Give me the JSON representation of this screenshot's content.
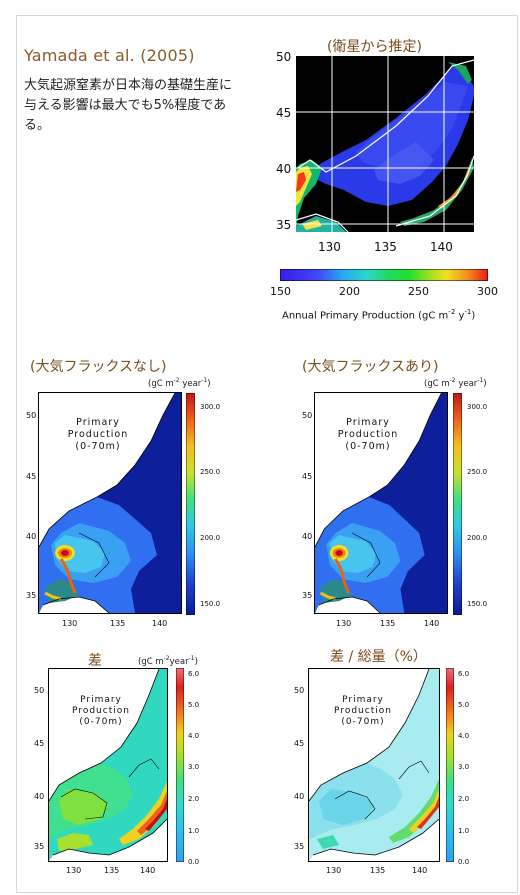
{
  "header": {
    "author": "Yamada et al. (2005)",
    "summary": "大気起源窒素が日本海の基礎生産に与える影響は最大でも5%程度である。"
  },
  "satellite": {
    "title": "(衛星から推定)",
    "y_ticks": [
      "50",
      "45",
      "40",
      "35"
    ],
    "x_ticks": [
      "130",
      "135",
      "140"
    ],
    "colorbar_ticks": [
      "150",
      "200",
      "250",
      "300"
    ],
    "colorbar_label_pre": "Annual  Primary Production (gC m",
    "colorbar_label_exp1": "-2",
    "colorbar_label_mid": " y",
    "colorbar_label_exp2": "-1",
    "colorbar_label_post": ")"
  },
  "panels": {
    "no_flux": {
      "title": "(大気フラックスなし)",
      "unit_pre": "(gC m",
      "unit_exp1": "-2",
      "unit_mid": "year",
      "unit_exp2": "-1",
      "unit_post": ")",
      "label_line1": "Primary",
      "label_line2": "Production",
      "label_line3": "(0-70m)",
      "y_ticks": [
        "50",
        "45",
        "40",
        "35"
      ],
      "x_ticks": [
        "130",
        "135",
        "140"
      ],
      "cb_ticks": [
        "300.0",
        "250.0",
        "200.0",
        "150.0"
      ]
    },
    "with_flux": {
      "title": "(大気フラックスあり)",
      "unit_pre": "(gC m",
      "unit_exp1": "-2",
      "unit_mid": "year",
      "unit_exp2": "-1",
      "unit_post": ")",
      "label_line1": "Primary",
      "label_line2": "Production",
      "label_line3": "(0-70m)",
      "y_ticks": [
        "50",
        "45",
        "40",
        "35"
      ],
      "x_ticks": [
        "130",
        "135",
        "140"
      ],
      "cb_ticks": [
        "300.0",
        "250.0",
        "200.0",
        "150.0"
      ]
    },
    "difference": {
      "title": "差",
      "unit_pre": "(gC m",
      "unit_exp1": "-2",
      "unit_mid": "year",
      "unit_exp2": "-1",
      "unit_post": ")",
      "label_line1": "Primary",
      "label_line2": "Production",
      "label_line3": "(0-70m)",
      "y_ticks": [
        "50",
        "45",
        "40",
        "35"
      ],
      "x_ticks": [
        "130",
        "135",
        "140"
      ],
      "cb_ticks": [
        "6.0",
        "5.0",
        "4.0",
        "3.0",
        "2.0",
        "1.0",
        "0.0"
      ]
    },
    "ratio": {
      "title": "差 / 総量（%）",
      "label_line1": "Primary",
      "label_line2": "Production",
      "label_line3": "(0-70m)",
      "y_ticks": [
        "50",
        "45",
        "40",
        "35"
      ],
      "x_ticks": [
        "130",
        "135",
        "140"
      ],
      "cb_ticks": [
        "6.0",
        "5.0",
        "4.0",
        "3.0",
        "2.0",
        "1.0",
        "0.0"
      ]
    }
  },
  "colors": {
    "title_brown": "#7a4c1c",
    "author_brown": "#8a5a2a",
    "deep_blue": "#0a1a9a",
    "sat_blue": "#2a3ae8"
  }
}
